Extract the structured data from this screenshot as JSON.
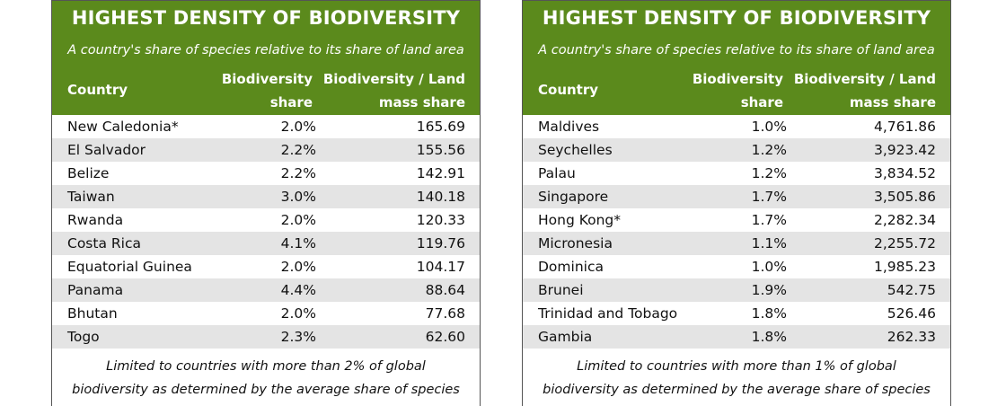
{
  "colors": {
    "header_green": "#5b8a1c",
    "stripe": "#e4e4e4"
  },
  "tables": [
    {
      "title": "HIGHEST DENSITY OF BIODIVERSITY",
      "subtitle": "A country's share of species relative to its share of land area",
      "headers": {
        "country": "Country",
        "share_1": "Biodiversity",
        "share_2": "share",
        "ratio_1": "Biodiversity / Land",
        "ratio_2": "mass share"
      },
      "rows": [
        {
          "country": "New Caledonia*",
          "share": "2.0%",
          "ratio": "165.69"
        },
        {
          "country": "El Salvador",
          "share": "2.2%",
          "ratio": "155.56"
        },
        {
          "country": "Belize",
          "share": "2.2%",
          "ratio": "142.91"
        },
        {
          "country": "Taiwan",
          "share": "3.0%",
          "ratio": "140.18"
        },
        {
          "country": "Rwanda",
          "share": "2.0%",
          "ratio": "120.33"
        },
        {
          "country": "Costa Rica",
          "share": "4.1%",
          "ratio": "119.76"
        },
        {
          "country": "Equatorial Guinea",
          "share": "2.0%",
          "ratio": "104.17"
        },
        {
          "country": "Panama",
          "share": "4.4%",
          "ratio": "88.64"
        },
        {
          "country": "Bhutan",
          "share": "2.0%",
          "ratio": "77.68"
        },
        {
          "country": "Togo",
          "share": "2.3%",
          "ratio": "62.60"
        }
      ],
      "footnote_1": "Limited to countries with more than 2% of global",
      "footnote_2": "biodiversity as determined by the average share of species"
    },
    {
      "title": "HIGHEST DENSITY OF BIODIVERSITY",
      "subtitle": "A country's share of species relative to its share of land area",
      "headers": {
        "country": "Country",
        "share_1": "Biodiversity",
        "share_2": "share",
        "ratio_1": "Biodiversity / Land",
        "ratio_2": "mass share"
      },
      "rows": [
        {
          "country": "Maldives",
          "share": "1.0%",
          "ratio": "4,761.86"
        },
        {
          "country": "Seychelles",
          "share": "1.2%",
          "ratio": "3,923.42"
        },
        {
          "country": "Palau",
          "share": "1.2%",
          "ratio": "3,834.52"
        },
        {
          "country": "Singapore",
          "share": "1.7%",
          "ratio": "3,505.86"
        },
        {
          "country": "Hong Kong*",
          "share": "1.7%",
          "ratio": "2,282.34"
        },
        {
          "country": "Micronesia",
          "share": "1.1%",
          "ratio": "2,255.72"
        },
        {
          "country": "Dominica",
          "share": "1.0%",
          "ratio": "1,985.23"
        },
        {
          "country": "Brunei",
          "share": "1.9%",
          "ratio": "542.75"
        },
        {
          "country": "Trinidad and Tobago",
          "share": "1.8%",
          "ratio": "526.46"
        },
        {
          "country": "Gambia",
          "share": "1.8%",
          "ratio": "262.33"
        }
      ],
      "footnote_1": "Limited to countries with more than 1% of global",
      "footnote_2": "biodiversity as determined by the average share of species"
    }
  ]
}
